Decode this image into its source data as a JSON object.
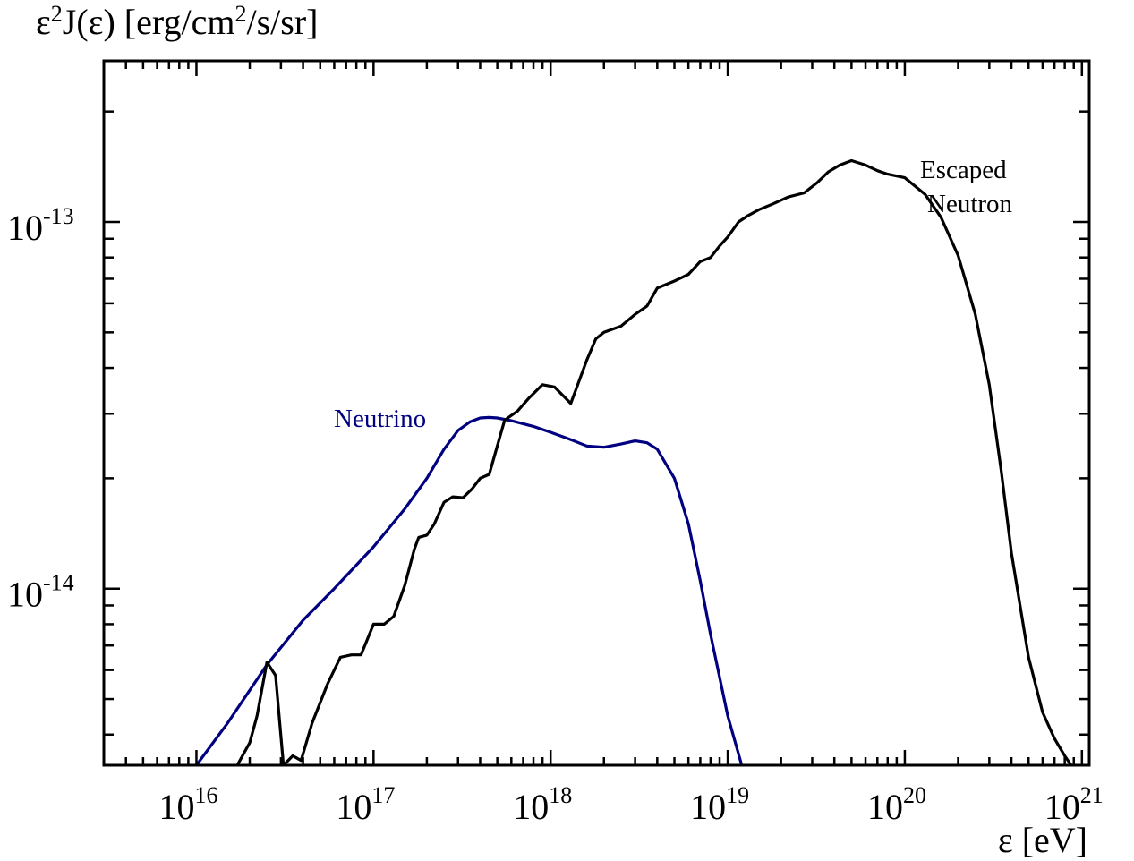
{
  "chart_data": {
    "type": "line",
    "ylabel_parts": [
      "ε",
      "2",
      "J(ε) [erg/cm",
      "2",
      "/s/sr]"
    ],
    "xlabel": "ε [eV]",
    "x_scale": "log",
    "y_scale": "log",
    "xlim": [
      3000000000000000.0,
      1.1e+21
    ],
    "ylim": [
      3.3e-15,
      2.75e-13
    ],
    "x_ticks": [
      {
        "value": 1e+16,
        "base": "10",
        "exp": "16"
      },
      {
        "value": 1e+17,
        "base": "10",
        "exp": "17"
      },
      {
        "value": 1e+18,
        "base": "10",
        "exp": "18"
      },
      {
        "value": 1e+19,
        "base": "10",
        "exp": "19"
      },
      {
        "value": 1e+20,
        "base": "10",
        "exp": "20"
      },
      {
        "value": 1e+21,
        "base": "10",
        "exp": "21"
      }
    ],
    "y_ticks": [
      {
        "value": 1e-14,
        "base": "10",
        "exp": "-14"
      },
      {
        "value": 1e-13,
        "base": "10",
        "exp": "-13"
      }
    ],
    "grid": false,
    "series": [
      {
        "name": "Neutrino",
        "label_lines": [
          "Neutrino"
        ],
        "color": "#000080",
        "x": [
          1e+16,
          1.5e+16,
          2.5e+16,
          4e+16,
          6e+16,
          1e+17,
          1.5e+17,
          2e+17,
          2.5e+17,
          3e+17,
          3.5e+17,
          4e+17,
          4.5e+17,
          5e+17,
          6e+17,
          8e+17,
          1e+18,
          1.3e+18,
          1.6e+18,
          2e+18,
          2.5e+18,
          3e+18,
          3.5e+18,
          4e+18,
          5e+18,
          6e+18,
          7e+18,
          8e+18,
          1e+19,
          1.2e+19
        ],
        "y": [
          3.3e-15,
          4.3e-15,
          6.2e-15,
          8.2e-15,
          1e-14,
          1.3e-14,
          1.65e-14,
          2e-14,
          2.4e-14,
          2.7e-14,
          2.85e-14,
          2.92e-14,
          2.93e-14,
          2.92e-14,
          2.87e-14,
          2.77e-14,
          2.67e-14,
          2.55e-14,
          2.45e-14,
          2.43e-14,
          2.48e-14,
          2.53e-14,
          2.5e-14,
          2.4e-14,
          2e-14,
          1.5e-14,
          1.05e-14,
          7.5e-15,
          4.5e-15,
          3.3e-15
        ]
      },
      {
        "name": "Escaped Neutron",
        "label_lines": [
          "Escaped",
          "Neutron"
        ],
        "color": "#000000",
        "x": [
          1.7e+16,
          2e+16,
          2.2e+16,
          2.5e+16,
          2.8e+16,
          3.1e+16,
          3.5e+16,
          3.9e+16,
          4.5e+16,
          5.5e+16,
          6.5e+16,
          7.5e+16,
          8.5e+16,
          1e+17,
          1.15e+17,
          1.3e+17,
          1.5e+17,
          1.7e+17,
          1.8e+17,
          2e+17,
          2.2e+17,
          2.5e+17,
          2.8e+17,
          3.2e+17,
          3.6e+17,
          4e+17,
          4.5e+17,
          5.5e+17,
          6.5e+17,
          7.5e+17,
          9e+17,
          1.05e+18,
          1.3e+18,
          1.6e+18,
          1.8e+18,
          2e+18,
          2.5e+18,
          3e+18,
          3.5e+18,
          4e+18,
          5e+18,
          6e+18,
          7e+18,
          8e+18,
          9e+18,
          1e+19,
          1.15e+19,
          1.3e+19,
          1.5e+19,
          1.8e+19,
          2.2e+19,
          2.7e+19,
          3.2e+19,
          3.7e+19,
          4.3e+19,
          5e+19,
          6e+19,
          7e+19,
          8e+19,
          1e+20,
          1.3e+20,
          1.6e+20,
          2e+20,
          2.5e+20,
          3e+20,
          3.5e+20,
          4e+20,
          5e+20,
          6e+20,
          7e+20,
          8e+20,
          8.7e+20
        ],
        "y": [
          3.3e-15,
          3.8e-15,
          4.5e-15,
          6.3e-15,
          5.8e-15,
          3.3e-15,
          3.5e-15,
          3.4e-15,
          4.3e-15,
          5.5e-15,
          6.5e-15,
          6.6e-15,
          6.6e-15,
          8e-15,
          8e-15,
          8.4e-15,
          1.02e-14,
          1.28e-14,
          1.38e-14,
          1.4e-14,
          1.5e-14,
          1.72e-14,
          1.78e-14,
          1.77e-14,
          1.87e-14,
          2e-14,
          2.05e-14,
          2.88e-14,
          3.05e-14,
          3.3e-14,
          3.6e-14,
          3.55e-14,
          3.2e-14,
          4.2e-14,
          4.8e-14,
          5e-14,
          5.2e-14,
          5.6e-14,
          5.9e-14,
          6.6e-14,
          6.9e-14,
          7.2e-14,
          7.8e-14,
          8e-14,
          8.6e-14,
          9.1e-14,
          1e-13,
          1.04e-13,
          1.08e-13,
          1.12e-13,
          1.17e-13,
          1.2e-13,
          1.28e-13,
          1.37e-13,
          1.43e-13,
          1.47e-13,
          1.43e-13,
          1.38e-13,
          1.35e-13,
          1.32e-13,
          1.19e-13,
          1.03e-13,
          8.1e-14,
          5.6e-14,
          3.6e-14,
          2.1e-14,
          1.25e-14,
          6.5e-15,
          4.6e-15,
          3.9e-15,
          3.5e-15,
          3.3e-15
        ]
      }
    ]
  }
}
